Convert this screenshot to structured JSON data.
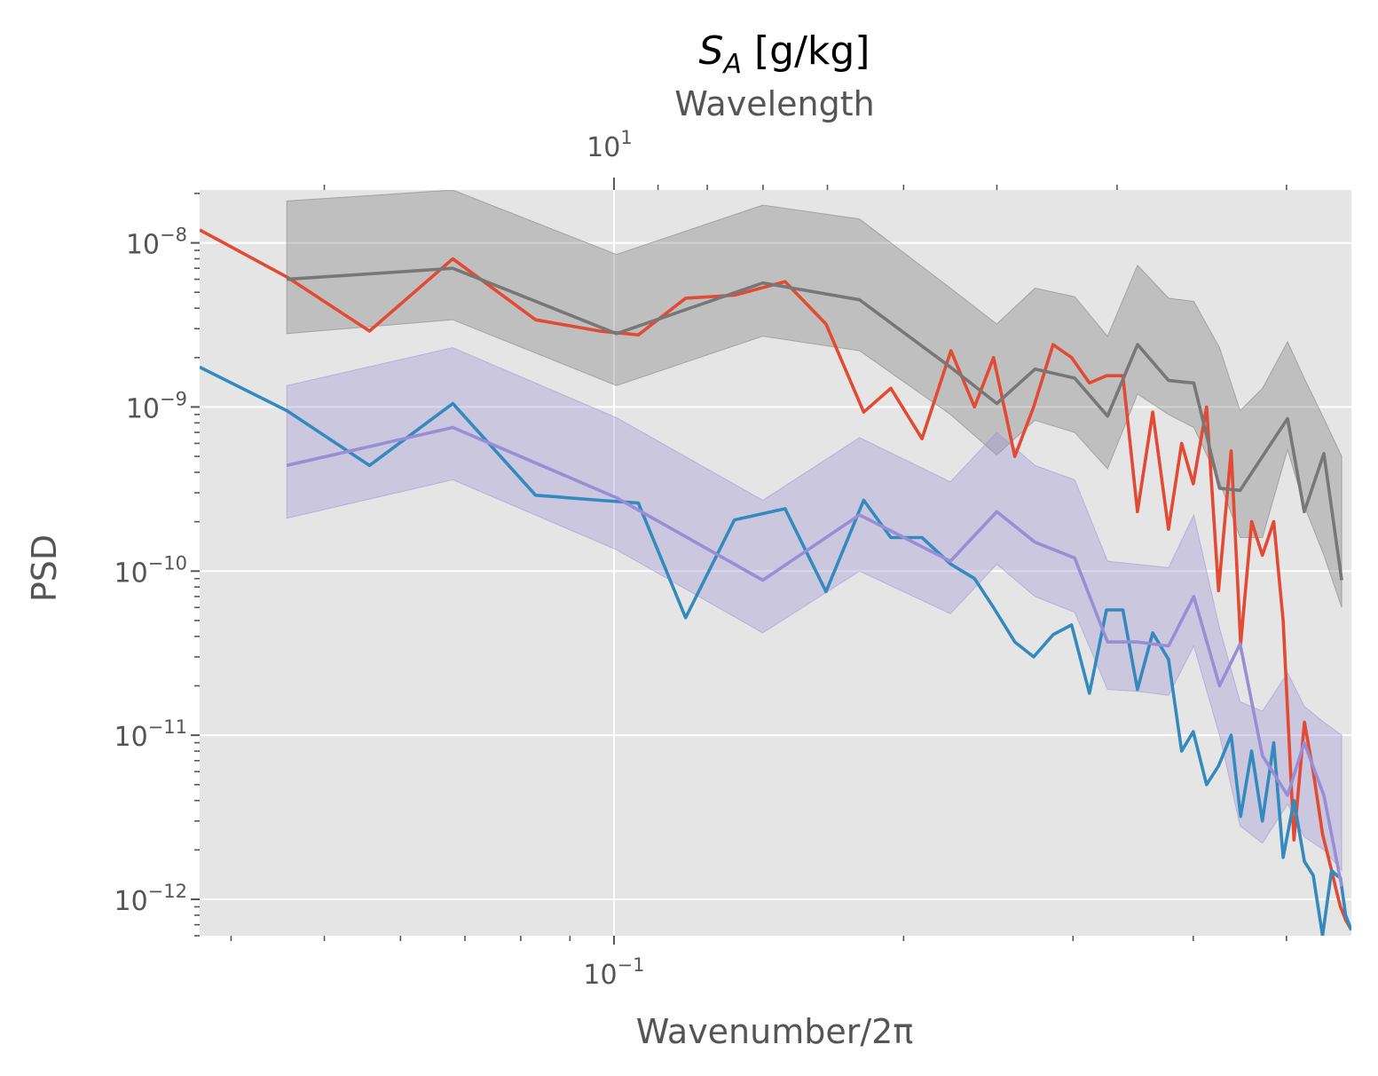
{
  "chart_data": {
    "type": "line",
    "title": {
      "main": "S",
      "subscript": "A",
      "rest": " [g/kg]"
    },
    "xlabel": "Wavenumber/2π",
    "ylabel": "PSD",
    "secondary_xlabel": "Wavelength",
    "xscale": "log",
    "yscale": "log",
    "xlim": [
      0.0371,
      0.584
    ],
    "ylim": [
      6e-13,
      2.1e-08
    ],
    "grid": true,
    "legend": "none",
    "x_ticks": [
      {
        "value": 0.1,
        "base": "10",
        "exp": "−1"
      }
    ],
    "top_ticks": [
      {
        "value": 0.1,
        "base": "10",
        "exp": "1"
      }
    ],
    "y_ticks": [
      {
        "value": 1e-08,
        "base": "10",
        "exp": "−8"
      },
      {
        "value": 1e-09,
        "base": "10",
        "exp": "−9"
      },
      {
        "value": 1e-10,
        "base": "10",
        "exp": "−10"
      },
      {
        "value": 1e-11,
        "base": "10",
        "exp": "−11"
      },
      {
        "value": 1e-12,
        "base": "10",
        "exp": "−12"
      }
    ],
    "bands": [
      {
        "color": "#777777",
        "opacity": 0.35,
        "x": [
          0.0457,
          0.068,
          0.1006,
          0.1428,
          0.18,
          0.2237,
          0.25,
          0.2739,
          0.3012,
          0.3258,
          0.3501,
          0.3771,
          0.4005,
          0.426,
          0.4475,
          0.4721,
          0.5013,
          0.5217,
          0.5468,
          0.5706
        ],
        "upper": [
          1.8e-08,
          2.1e-08,
          8.5e-09,
          1.7e-08,
          1.4e-08,
          5.3e-09,
          3.2e-09,
          5.3e-09,
          4.7e-09,
          2.7e-09,
          7.3e-09,
          4.6e-09,
          4.4e-09,
          2.3e-09,
          9.5e-10,
          1.3e-09,
          2.5e-09,
          1.5e-09,
          8.5e-10,
          5e-10
        ],
        "lower": [
          2.8e-09,
          3.4e-09,
          1.35e-09,
          2.7e-09,
          2.2e-09,
          9e-10,
          5.1e-10,
          8.3e-10,
          7e-10,
          4.2e-10,
          1.2e-09,
          9e-10,
          7.5e-10,
          3.5e-10,
          1.6e-10,
          1.6e-10,
          5.5e-10,
          2.5e-10,
          1.25e-10,
          6e-11
        ]
      },
      {
        "color": "#988ED5",
        "opacity": 0.35,
        "x": [
          0.0457,
          0.068,
          0.1006,
          0.1428,
          0.18,
          0.2237,
          0.25,
          0.2739,
          0.3012,
          0.3258,
          0.3501,
          0.3771,
          0.4005,
          0.426,
          0.4475,
          0.4721,
          0.5013,
          0.5217,
          0.5468,
          0.5706
        ],
        "upper": [
          1.35e-09,
          2.3e-09,
          8.6e-10,
          2.7e-10,
          6.5e-10,
          3.5e-10,
          7e-10,
          4.4e-10,
          3.6e-10,
          1.15e-10,
          1.1e-10,
          1.05e-10,
          2.2e-10,
          4.5e-11,
          1.6e-11,
          1.4e-11,
          2.4e-11,
          1.5e-11,
          1.2e-11,
          1e-11
        ],
        "lower": [
          2.1e-10,
          3.6e-10,
          1.35e-10,
          4.2e-11,
          1e-10,
          5.5e-11,
          1.1e-10,
          7e-11,
          5.6e-11,
          1.9e-11,
          1.85e-11,
          1.75e-11,
          3.5e-11,
          1e-11,
          2.8e-12,
          2.2e-12,
          3.8e-12,
          2.4e-12,
          2e-12,
          1.5e-12
        ]
      }
    ],
    "series": [
      {
        "color": "#E24A33",
        "x": [
          0.0371,
          0.0457,
          0.0557,
          0.068,
          0.0829,
          0.0966,
          0.106,
          0.1187,
          0.1334,
          0.1506,
          0.1661,
          0.1818,
          0.194,
          0.209,
          0.224,
          0.237,
          0.248,
          0.261,
          0.273,
          0.286,
          0.299,
          0.312,
          0.325,
          0.338,
          0.35,
          0.363,
          0.377,
          0.389,
          0.4,
          0.413,
          0.425,
          0.438,
          0.448,
          0.46,
          0.472,
          0.485,
          0.496,
          0.509,
          0.522,
          0.533,
          0.545,
          0.557,
          0.564,
          0.569,
          0.576,
          0.584
        ],
        "y": [
          1.2e-08,
          6.2e-09,
          2.9e-09,
          8e-09,
          3.4e-09,
          2.9e-09,
          2.75e-09,
          4.6e-09,
          4.8e-09,
          5.8e-09,
          3.2e-09,
          9.3e-10,
          1.3e-09,
          6.4e-10,
          2.2e-09,
          1e-09,
          2e-09,
          5e-10,
          1e-09,
          2.4e-09,
          2e-09,
          1.4e-09,
          1.55e-09,
          1.55e-09,
          2.3e-10,
          9.3e-10,
          1.8e-10,
          6e-10,
          3.4e-10,
          1e-09,
          7.6e-11,
          5.4e-10,
          3.6e-11,
          2e-10,
          1.25e-10,
          2e-10,
          5e-11,
          2.3e-12,
          1.2e-11,
          6e-12,
          2.5e-12,
          1.5e-12,
          1.1e-12,
          9e-13,
          7.5e-13,
          6.5e-13
        ]
      },
      {
        "color": "#348ABD",
        "x": [
          0.0371,
          0.0457,
          0.0557,
          0.068,
          0.0829,
          0.0966,
          0.106,
          0.1187,
          0.1334,
          0.1506,
          0.1661,
          0.1818,
          0.194,
          0.209,
          0.224,
          0.237,
          0.248,
          0.261,
          0.273,
          0.286,
          0.299,
          0.312,
          0.325,
          0.338,
          0.35,
          0.363,
          0.377,
          0.389,
          0.4,
          0.413,
          0.425,
          0.438,
          0.448,
          0.46,
          0.472,
          0.485,
          0.496,
          0.509,
          0.522,
          0.533,
          0.545,
          0.557,
          0.564,
          0.569,
          0.576,
          0.584
        ],
        "y": [
          1.75e-09,
          9.5e-10,
          4.4e-10,
          1.05e-09,
          2.9e-10,
          2.7e-10,
          2.6e-10,
          5.2e-11,
          2.05e-10,
          2.4e-10,
          7.5e-11,
          2.7e-10,
          1.6e-10,
          1.6e-10,
          1.1e-10,
          9e-11,
          6e-11,
          3.7e-11,
          3e-11,
          4.1e-11,
          4.7e-11,
          1.8e-11,
          5.8e-11,
          5.8e-11,
          1.9e-11,
          4.2e-11,
          2.9e-11,
          8e-12,
          1.05e-11,
          5e-12,
          6.5e-12,
          1e-11,
          3.2e-12,
          8e-12,
          3e-12,
          9e-12,
          1.8e-12,
          4e-12,
          1.7e-12,
          1.4e-12,
          6e-13,
          1.5e-12,
          1.4e-12,
          1.35e-12,
          8e-13,
          6.5e-13
        ]
      },
      {
        "color": "#777777",
        "x": [
          0.0457,
          0.068,
          0.1006,
          0.1428,
          0.18,
          0.2237,
          0.25,
          0.2739,
          0.3012,
          0.3258,
          0.3501,
          0.3771,
          0.4005,
          0.426,
          0.4475,
          0.4721,
          0.5013,
          0.5217,
          0.5468,
          0.5706
        ],
        "y": [
          6e-09,
          7e-09,
          2.8e-09,
          5.7e-09,
          4.5e-09,
          1.75e-09,
          1.05e-09,
          1.7e-09,
          1.5e-09,
          8.8e-10,
          2.4e-09,
          1.45e-09,
          1.4e-09,
          3.2e-10,
          3.1e-10,
          5e-10,
          8.5e-10,
          2.3e-10,
          5.2e-10,
          8.8e-11
        ]
      },
      {
        "color": "#988ED5",
        "x": [
          0.0457,
          0.068,
          0.1006,
          0.1428,
          0.18,
          0.2237,
          0.25,
          0.2739,
          0.3012,
          0.3258,
          0.3501,
          0.3771,
          0.4005,
          0.426,
          0.4475,
          0.4721,
          0.5013,
          0.5217,
          0.5468,
          0.5706
        ],
        "y": [
          4.4e-10,
          7.5e-10,
          2.8e-10,
          8.8e-11,
          2.2e-10,
          1.15e-10,
          2.3e-10,
          1.5e-10,
          1.2e-10,
          3.7e-11,
          3.7e-11,
          3.5e-11,
          7e-11,
          2e-11,
          3.6e-11,
          7.5e-12,
          4.3e-12,
          9e-12,
          4.3e-12,
          1.2e-12
        ]
      }
    ]
  }
}
